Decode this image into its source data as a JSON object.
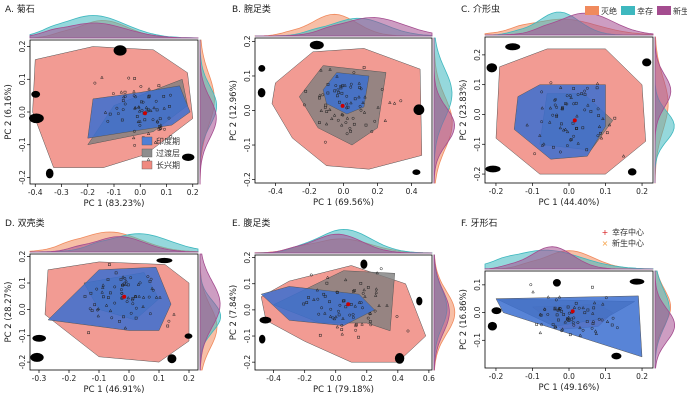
{
  "legend_top": {
    "items": [
      {
        "label": "灭绝",
        "color": "#F08A5D"
      },
      {
        "label": "幸存",
        "color": "#3EB8BF"
      },
      {
        "label": "新生",
        "color": "#A44C8F"
      }
    ]
  },
  "legend_phase": {
    "items": [
      {
        "label": "印度期",
        "color": "#4F7FD6",
        "marker": "triangle"
      },
      {
        "label": "过渡层",
        "color": "#8E8E8E",
        "marker": "diamond"
      },
      {
        "label": "长兴期",
        "color": "#F08A80",
        "marker": "circle"
      }
    ]
  },
  "legend_center": {
    "items": [
      {
        "label": "幸存中心",
        "color": "#D7191C",
        "marker": "+"
      },
      {
        "label": "新生中心",
        "color": "#F59E42",
        "marker": "x"
      }
    ]
  },
  "colors": {
    "changhsingian": "#F08A80",
    "transition": "#7E7E7E",
    "induan": "#3B6FD0",
    "extinct": "#F08A5D",
    "survivor": "#3EB8BF",
    "originate": "#A44C8F"
  },
  "chart_data": [
    {
      "type": "scatter",
      "title": "A. 菊石",
      "xlabel": "PC 1 (83.23%)",
      "ylabel": "PC 2 (6.16%)",
      "xlim": [
        -0.42,
        0.22
      ],
      "ylim": [
        -0.22,
        0.22
      ],
      "xticks": [
        "-0.4",
        "-0.3",
        "-0.2",
        "-0.1",
        "0.0",
        "0.1",
        "0.2"
      ],
      "xtick_values": [
        -0.4,
        -0.3,
        -0.2,
        -0.1,
        0.0,
        0.1,
        0.2
      ],
      "yticks": [
        "-0.2",
        "-0.1",
        "0.0",
        "0.1",
        "0.2"
      ],
      "ytick_values": [
        -0.2,
        -0.1,
        0.0,
        0.1,
        0.2
      ],
      "hulls": {
        "changhsingian": [
          [
            -0.4,
            0.16
          ],
          [
            -0.18,
            0.2
          ],
          [
            0.05,
            0.19
          ],
          [
            0.18,
            0.12
          ],
          [
            0.2,
            -0.02
          ],
          [
            0.02,
            -0.13
          ],
          [
            -0.14,
            -0.17
          ],
          [
            -0.33,
            -0.17
          ],
          [
            -0.41,
            0.0
          ]
        ],
        "transition": [
          [
            -0.2,
            -0.1
          ],
          [
            -0.1,
            0.02
          ],
          [
            0.16,
            0.1
          ],
          [
            0.18,
            0.02
          ],
          [
            0.05,
            -0.06
          ]
        ],
        "induan": [
          [
            -0.2,
            -0.08
          ],
          [
            -0.18,
            0.04
          ],
          [
            0.0,
            0.06
          ],
          [
            0.15,
            0.08
          ],
          [
            0.19,
            0.0
          ],
          [
            0.12,
            -0.04
          ]
        ]
      },
      "legend": "phase"
    },
    {
      "type": "scatter",
      "title": "B. 腕足类",
      "xlabel": "PC 1 (69.56%)",
      "ylabel": "PC 2 (12.96%)",
      "xlim": [
        -0.52,
        0.52
      ],
      "ylim": [
        -0.21,
        0.21
      ],
      "xticks": [
        "-0.4",
        "-0.2",
        "0.0",
        "0.2",
        "0.4"
      ],
      "xtick_values": [
        -0.4,
        -0.2,
        0.0,
        0.2,
        0.4
      ],
      "yticks": [
        "-0.2",
        "-0.1",
        "0.0",
        "0.1",
        "0.2"
      ],
      "ytick_values": [
        -0.2,
        -0.1,
        0.0,
        0.1,
        0.2
      ],
      "hulls": {
        "changhsingian": [
          [
            -0.4,
            0.08
          ],
          [
            -0.18,
            0.17
          ],
          [
            0.12,
            0.18
          ],
          [
            0.45,
            0.12
          ],
          [
            0.46,
            -0.13
          ],
          [
            0.15,
            -0.17
          ],
          [
            -0.1,
            -0.16
          ],
          [
            -0.3,
            -0.08
          ],
          [
            -0.42,
            0.02
          ]
        ],
        "transition": [
          [
            -0.26,
            0.04
          ],
          [
            -0.12,
            0.13
          ],
          [
            0.25,
            0.11
          ],
          [
            0.2,
            -0.05
          ],
          [
            0.05,
            -0.1
          ],
          [
            -0.15,
            -0.05
          ]
        ],
        "induan": [
          [
            -0.12,
            0.06
          ],
          [
            -0.04,
            0.11
          ],
          [
            0.15,
            0.1
          ],
          [
            0.12,
            0.01
          ],
          [
            0.02,
            -0.01
          ],
          [
            -0.1,
            0.02
          ]
        ]
      },
      "legend": "none"
    },
    {
      "type": "scatter",
      "title": "C. 介形虫",
      "xlabel": "PC 1 (44.40%)",
      "ylabel": "PC 2 (23.83%)",
      "xlim": [
        -0.23,
        0.23
      ],
      "ylim": [
        -0.23,
        0.26
      ],
      "xticks": [
        "-0.2",
        "-0.1",
        "0.0",
        "0.1",
        "0.2"
      ],
      "xtick_values": [
        -0.2,
        -0.1,
        0.0,
        0.1,
        0.2
      ],
      "yticks": [
        "-0.2",
        "-0.1",
        "0.0",
        "0.1",
        "0.2"
      ],
      "ytick_values": [
        -0.2,
        -0.1,
        0.0,
        0.1,
        0.2
      ],
      "hulls": {
        "changhsingian": [
          [
            -0.19,
            0.16
          ],
          [
            -0.06,
            0.22
          ],
          [
            0.1,
            0.22
          ],
          [
            0.2,
            0.1
          ],
          [
            0.21,
            -0.09
          ],
          [
            0.1,
            -0.2
          ],
          [
            -0.08,
            -0.2
          ],
          [
            -0.2,
            -0.08
          ]
        ],
        "transition": [
          [
            -0.06,
            0.07
          ],
          [
            0.04,
            0.07
          ],
          [
            0.12,
            -0.02
          ],
          [
            0.06,
            -0.12
          ],
          [
            -0.08,
            -0.1
          ]
        ],
        "induan": [
          [
            -0.14,
            0.06
          ],
          [
            -0.08,
            0.1
          ],
          [
            0.1,
            0.1
          ],
          [
            0.1,
            -0.04
          ],
          [
            0.05,
            -0.14
          ],
          [
            -0.05,
            -0.15
          ],
          [
            -0.15,
            -0.05
          ]
        ]
      },
      "legend": "none"
    },
    {
      "type": "scatter",
      "title": "D. 双壳类",
      "xlabel": "PC 1 (46.91%)",
      "ylabel": "PC 2 (28.27%)",
      "xlim": [
        -0.33,
        0.23
      ],
      "ylim": [
        -0.23,
        0.21
      ],
      "xticks": [
        "-0.3",
        "-0.2",
        "-0.1",
        "0.0",
        "0.1",
        "0.2"
      ],
      "xtick_values": [
        -0.3,
        -0.2,
        -0.1,
        0.0,
        0.1,
        0.2
      ],
      "yticks": [
        "-0.2",
        "-0.1",
        "0.0",
        "0.1",
        "0.2"
      ],
      "ytick_values": [
        -0.2,
        -0.1,
        0.0,
        0.1,
        0.2
      ],
      "hulls": {
        "changhsingian": [
          [
            -0.27,
            0.15
          ],
          [
            -0.1,
            0.18
          ],
          [
            0.12,
            0.17
          ],
          [
            0.2,
            0.1
          ],
          [
            0.2,
            -0.12
          ],
          [
            0.1,
            -0.2
          ],
          [
            -0.1,
            -0.18
          ],
          [
            -0.28,
            -0.02
          ]
        ],
        "transition": [
          [
            -0.15,
            0.1
          ],
          [
            0.05,
            0.14
          ],
          [
            0.1,
            0.04
          ],
          [
            0.02,
            -0.04
          ],
          [
            -0.1,
            0.0
          ]
        ],
        "induan": [
          [
            -0.27,
            -0.04
          ],
          [
            -0.1,
            0.15
          ],
          [
            0.09,
            0.16
          ],
          [
            0.14,
            0.02
          ],
          [
            0.1,
            -0.08
          ],
          [
            0.0,
            -0.08
          ]
        ]
      },
      "legend": "none"
    },
    {
      "type": "scatter",
      "title": "E. 腹足类",
      "xlabel": "PC 1 (79.18%)",
      "ylabel": "PC 2 (7.84%)",
      "xlim": [
        -0.52,
        0.62
      ],
      "ylim": [
        -0.23,
        0.21
      ],
      "xticks": [
        "-0.4",
        "-0.2",
        "0.0",
        "0.2",
        "0.4",
        "0.6"
      ],
      "xtick_values": [
        -0.4,
        -0.2,
        0.0,
        0.2,
        0.4,
        0.6
      ],
      "yticks": [
        "-0.2",
        "-0.1",
        "0.0",
        "0.1",
        "0.2"
      ],
      "ytick_values": [
        -0.2,
        -0.1,
        0.0,
        0.1,
        0.2
      ],
      "hulls": {
        "changhsingian": [
          [
            -0.48,
            0.05
          ],
          [
            -0.3,
            0.11
          ],
          [
            0.1,
            0.17
          ],
          [
            0.45,
            0.1
          ],
          [
            0.58,
            -0.1
          ],
          [
            0.4,
            -0.2
          ],
          [
            0.1,
            -0.2
          ],
          [
            -0.2,
            -0.12
          ],
          [
            -0.45,
            -0.04
          ]
        ],
        "transition": [
          [
            -0.4,
            0.02
          ],
          [
            0.05,
            0.15
          ],
          [
            0.38,
            0.14
          ],
          [
            0.35,
            -0.08
          ],
          [
            0.2,
            -0.05
          ],
          [
            -0.1,
            -0.05
          ]
        ],
        "induan": [
          [
            -0.48,
            0.06
          ],
          [
            -0.3,
            0.09
          ],
          [
            0.15,
            0.06
          ],
          [
            0.25,
            0.0
          ],
          [
            0.05,
            -0.06
          ],
          [
            -0.3,
            -0.04
          ]
        ]
      },
      "legend": "none"
    },
    {
      "type": "scatter",
      "title": "F. 牙形石",
      "xlabel": "PC 1 (49.16%)",
      "ylabel": "PC 2 (16.86%)",
      "xlim": [
        -0.23,
        0.23
      ],
      "ylim": [
        -0.2,
        0.15
      ],
      "xticks": [
        "-0.2",
        "-0.1",
        "0.0",
        "0.1",
        "0.2"
      ],
      "xtick_values": [
        -0.2,
        -0.1,
        0.0,
        0.1,
        0.2
      ],
      "yticks": [
        "-0.1",
        "0.0",
        "0.1"
      ],
      "ytick_values": [
        -0.1,
        0.0,
        0.1
      ],
      "hulls": {
        "changhsingian": [
          [
            -0.1,
            0.02
          ],
          [
            0.08,
            0.03
          ],
          [
            0.12,
            0.0
          ],
          [
            0.08,
            -0.05
          ],
          [
            -0.02,
            -0.06
          ]
        ],
        "transition": [
          [
            -0.2,
            0.05
          ],
          [
            0.18,
            0.04
          ],
          [
            0.1,
            -0.02
          ],
          [
            -0.04,
            -0.05
          ]
        ],
        "induan": [
          [
            -0.2,
            0.05
          ],
          [
            0.19,
            0.06
          ],
          [
            0.2,
            -0.16
          ],
          [
            -0.18,
            0.0
          ]
        ]
      },
      "legend": "center"
    }
  ]
}
